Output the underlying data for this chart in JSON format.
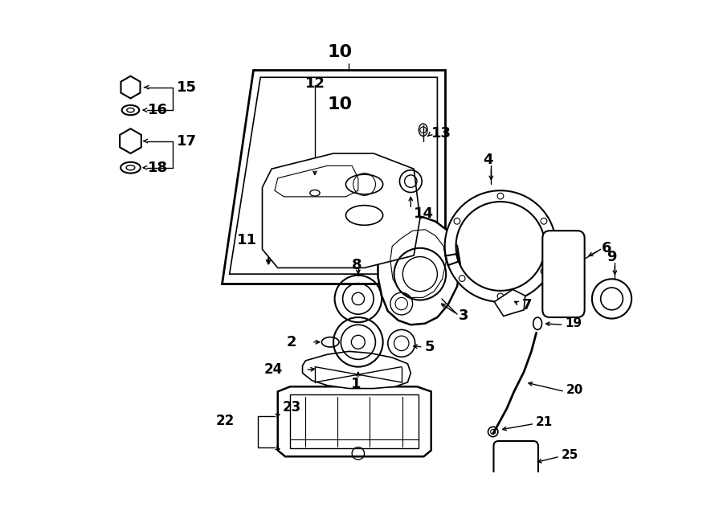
{
  "bg_color": "#ffffff",
  "lc": "#000000",
  "lw": 1.0,
  "fig_w": 9.0,
  "fig_h": 6.61,
  "dpi": 100
}
